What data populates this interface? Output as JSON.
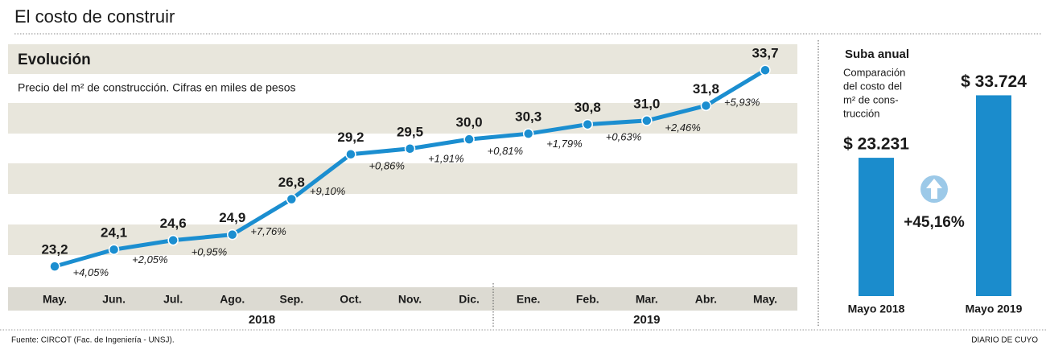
{
  "title": "El costo de construir",
  "source": "Fuente: CIRCOT (Fac. de Ingeniería - UNSJ).",
  "credit": "DIARIO DE CUYO",
  "chart_data": [
    {
      "type": "line",
      "title": "Evolución",
      "subtitle": "Precio del m² de construcción. Cifras en miles de pesos",
      "categories": [
        "May.",
        "Jun.",
        "Jul.",
        "Ago.",
        "Sep.",
        "Oct.",
        "Nov.",
        "Dic.",
        "Ene.",
        "Feb.",
        "Mar.",
        "Abr.",
        "May."
      ],
      "values": [
        23.2,
        24.1,
        24.6,
        24.9,
        26.8,
        29.2,
        29.5,
        30.0,
        30.3,
        30.8,
        31.0,
        31.8,
        33.7
      ],
      "value_labels": [
        "23,2",
        "24,1",
        "24,6",
        "24,9",
        "26,8",
        "29,2",
        "29,5",
        "30,0",
        "30,3",
        "30,8",
        "31,0",
        "31,8",
        "33,7"
      ],
      "annotations": [
        "+4,05%",
        "+2,05%",
        "+0,95%",
        "+7,76%",
        "+9,10%",
        "+0,86%",
        "+1,91%",
        "+0,81%",
        "+1,79%",
        "+0,63%",
        "+2,46%",
        "+5,93%"
      ],
      "groups": [
        "2018",
        "2019"
      ],
      "color": "#1b8ed0",
      "ylim": [
        22,
        35
      ]
    },
    {
      "type": "bar",
      "title": "Suba anual",
      "subtitle_lines": [
        "Comparación",
        "del costo del",
        "m² de cons-",
        "trucción"
      ],
      "categories": [
        "Mayo 2018",
        "Mayo 2019"
      ],
      "values": [
        23231,
        33724
      ],
      "value_labels": [
        "$ 23.231",
        "$ 33.724"
      ],
      "annotation": "+45,16%",
      "color": "#1b8ccc",
      "ylim": [
        0,
        35000
      ]
    }
  ]
}
